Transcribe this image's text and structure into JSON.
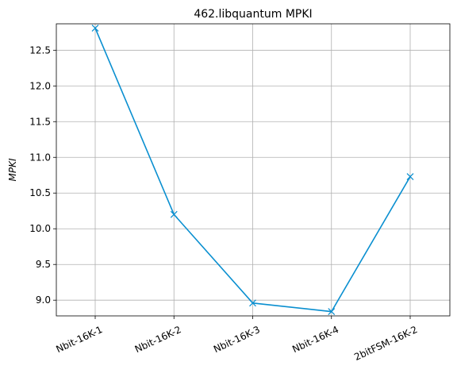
{
  "chart_data": {
    "type": "line",
    "title": "462.libquantum MPKI",
    "xlabel": "",
    "ylabel": "MPKI",
    "categories": [
      "Nbit-16K-1",
      "Nbit-16K-2",
      "Nbit-16K-3",
      "Nbit-16K-4",
      "2bitFSM-16K-2"
    ],
    "series": [
      {
        "values": [
          12.81,
          10.2,
          8.96,
          8.84,
          10.73
        ]
      }
    ],
    "ylim": [
      8.78,
      12.87
    ],
    "yticks": [
      9.0,
      9.5,
      10.0,
      10.5,
      11.0,
      11.5,
      12.0,
      12.5
    ],
    "ytick_labels": [
      "9.0",
      "9.5",
      "10.0",
      "10.5",
      "11.0",
      "11.5",
      "12.0",
      "12.5"
    ],
    "grid": true,
    "marker": "x",
    "line_color": "#0a8fd0"
  }
}
